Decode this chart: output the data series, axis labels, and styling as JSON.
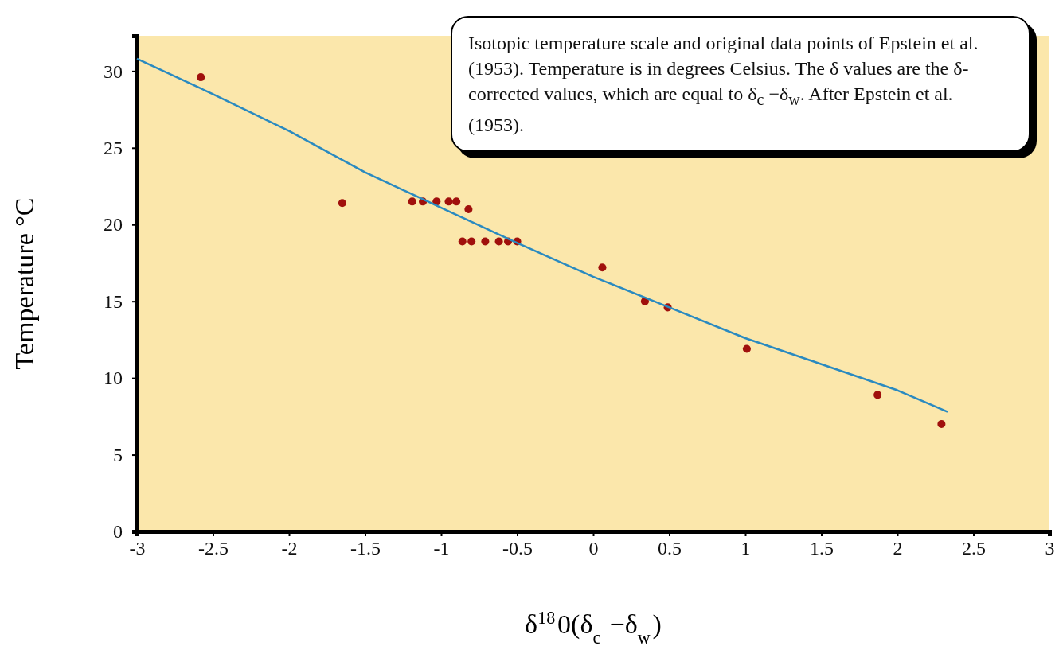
{
  "chart_data": {
    "type": "scatter",
    "xlabel": "δ$^{18}$0(δ$_{c}$ −δ$_{w}$)",
    "ylabel": "Temperature °C",
    "annotations": [
      "Isotopic temperature scale and original data points of Epstein et al. (1953).  Temperature is in degrees Celsius. The δ values are the δ-corrected values, which are equal to δ$_{c}$ −δ$_{w}$.  After Epstein et al. (1953)."
    ],
    "xlim": [
      -3,
      3
    ],
    "ylim": [
      0,
      32.3
    ],
    "xticks": [
      -3,
      -2.5,
      -2,
      -1.5,
      -1,
      -0.5,
      0,
      0.5,
      1,
      1.5,
      2,
      2.5,
      3
    ],
    "yticks": [
      0,
      5,
      10,
      15,
      20,
      25,
      30
    ],
    "grid": false,
    "series": [
      {
        "marker": "circle",
        "color": "#a0100c",
        "x": [
          -2.58,
          -1.65,
          -1.19,
          -1.12,
          -1.03,
          -0.95,
          -0.9,
          -0.82,
          -0.86,
          -0.8,
          -0.71,
          -0.62,
          -0.56,
          -0.5,
          0.06,
          0.34,
          0.49,
          1.01,
          1.87,
          2.29
        ],
        "values": [
          29.6,
          21.4,
          21.5,
          21.5,
          21.5,
          21.5,
          21.5,
          21.0,
          18.9,
          18.9,
          18.9,
          18.9,
          18.9,
          18.9,
          17.2,
          15.0,
          14.6,
          11.9,
          8.9,
          7.0
        ]
      },
      {
        "type": "line",
        "marker": "none",
        "color": "#2a8ac0",
        "x": [
          -3,
          -2.5,
          -2,
          -1.5,
          -1,
          -0.5,
          0,
          0.5,
          1,
          1.5,
          2,
          2.33
        ],
        "values": [
          30.8,
          28.5,
          26.1,
          23.4,
          21.1,
          18.8,
          16.6,
          14.6,
          12.6,
          10.9,
          9.2,
          7.8
        ]
      }
    ]
  }
}
